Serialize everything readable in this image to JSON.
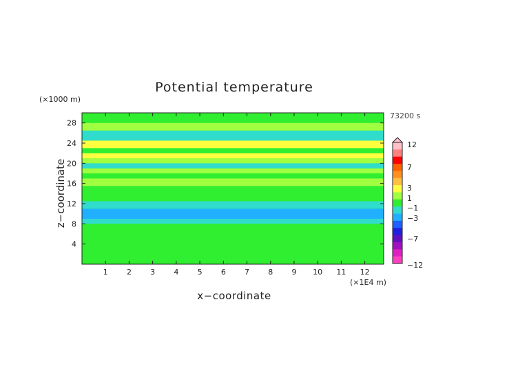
{
  "chart_data": {
    "type": "heatmap",
    "title": "Potential temperature",
    "xlabel": "x−coordinate",
    "ylabel": "z−coordinate",
    "x_unit": "(×1E4 m)",
    "y_unit": "(×1000 m)",
    "time_label": "73200 s",
    "xlim": [
      0,
      12.8
    ],
    "ylim": [
      0,
      30
    ],
    "x_ticks": [
      "1",
      "2",
      "3",
      "4",
      "5",
      "6",
      "7",
      "8",
      "9",
      "10",
      "11",
      "12"
    ],
    "y_ticks": [
      "4",
      "8",
      "12",
      "16",
      "20",
      "24",
      "28"
    ],
    "colorbar": {
      "labels": [
        "12",
        "7",
        "3",
        "1",
        "−1",
        "−3",
        "−7",
        "−12"
      ],
      "colors": [
        "#ffc0c8",
        "#ff8080",
        "#ff0000",
        "#ff6000",
        "#ff9020",
        "#ffc040",
        "#ffff40",
        "#a0ff40",
        "#30ee30",
        "#30ddcc",
        "#20b0ff",
        "#2060ff",
        "#2020e0",
        "#6010c0",
        "#a010c0",
        "#e020c0",
        "#ff40c0"
      ]
    },
    "bands": [
      {
        "z_range": [
          0,
          3
        ],
        "value": 0
      },
      {
        "z_range": [
          3,
          4.5
        ],
        "value": -0.5
      },
      {
        "z_range": [
          4.5,
          6
        ],
        "value": 0.5
      },
      {
        "z_range": [
          6,
          8
        ],
        "value": -0.5
      },
      {
        "z_range": [
          8,
          9
        ],
        "value": -1.5
      },
      {
        "z_range": [
          9,
          11
        ],
        "value": -3
      },
      {
        "z_range": [
          11,
          12.5
        ],
        "value": -2
      },
      {
        "z_range": [
          12.5,
          14
        ],
        "value": -0.5
      },
      {
        "z_range": [
          14,
          15.5
        ],
        "value": 0.5
      },
      {
        "z_range": [
          15.5,
          17
        ],
        "value": 2
      },
      {
        "z_range": [
          17,
          18
        ],
        "value": 0
      },
      {
        "z_range": [
          18,
          19
        ],
        "value": 2
      },
      {
        "z_range": [
          19,
          20
        ],
        "value": -1
      },
      {
        "z_range": [
          20,
          21
        ],
        "value": 1
      },
      {
        "z_range": [
          21,
          22
        ],
        "value": 3
      },
      {
        "z_range": [
          22,
          23
        ],
        "value": 0
      },
      {
        "z_range": [
          23,
          24.5
        ],
        "value": 3
      },
      {
        "z_range": [
          24.5,
          25.5
        ],
        "value": -1
      },
      {
        "z_range": [
          25.5,
          26.5
        ],
        "value": -2
      },
      {
        "z_range": [
          26.5,
          28
        ],
        "value": 2
      },
      {
        "z_range": [
          28,
          30
        ],
        "value": 0
      }
    ]
  }
}
